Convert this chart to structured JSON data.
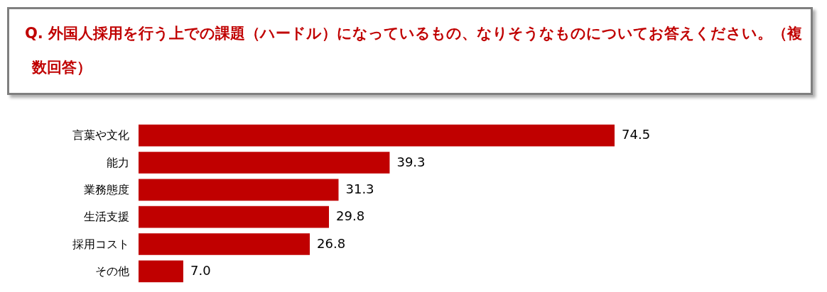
{
  "chart_data": {
    "type": "bar",
    "orientation": "horizontal",
    "title": "Q. 外国人採用を行う上での課題（ハードル）になっているもの、なりそうなものについてお答えください。（複数回答）",
    "categories": [
      "言葉や文化",
      "能力",
      "業務態度",
      "生活支援",
      "採用コスト",
      "その他"
    ],
    "values": [
      74.5,
      39.3,
      31.3,
      29.8,
      26.8,
      7.0
    ],
    "value_labels": [
      "74.5",
      "39.3",
      "31.3",
      "29.8",
      "26.8",
      "7.0"
    ],
    "color": "#c00000"
  }
}
